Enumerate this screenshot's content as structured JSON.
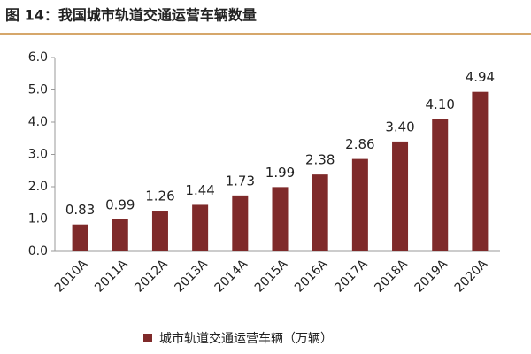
{
  "chart_data": {
    "type": "bar",
    "title": "图 14：我国城市轨道交通运营车辆数量",
    "categories": [
      "2010A",
      "2011A",
      "2012A",
      "2013A",
      "2014A",
      "2015A",
      "2016A",
      "2017A",
      "2018A",
      "2019A",
      "2020A"
    ],
    "series": [
      {
        "name": "城市轨道交通运营车辆（万辆）",
        "color": "#7f2a2a",
        "values": [
          0.83,
          0.99,
          1.26,
          1.44,
          1.73,
          1.99,
          2.38,
          2.86,
          3.4,
          4.1,
          4.94
        ],
        "value_labels": [
          "0.83",
          "0.99",
          "1.26",
          "1.44",
          "1.73",
          "1.99",
          "2.38",
          "2.86",
          "3.40",
          "4.10",
          "4.94"
        ]
      }
    ],
    "ylim": [
      0,
      6
    ],
    "yticks": [
      {
        "value": 0,
        "label": "0.0"
      },
      {
        "value": 1,
        "label": "1.0"
      },
      {
        "value": 2,
        "label": "2.0"
      },
      {
        "value": 3,
        "label": "3.0"
      },
      {
        "value": 4,
        "label": "4.0"
      },
      {
        "value": 5,
        "label": "5.0"
      },
      {
        "value": 6,
        "label": "6.0"
      }
    ]
  }
}
